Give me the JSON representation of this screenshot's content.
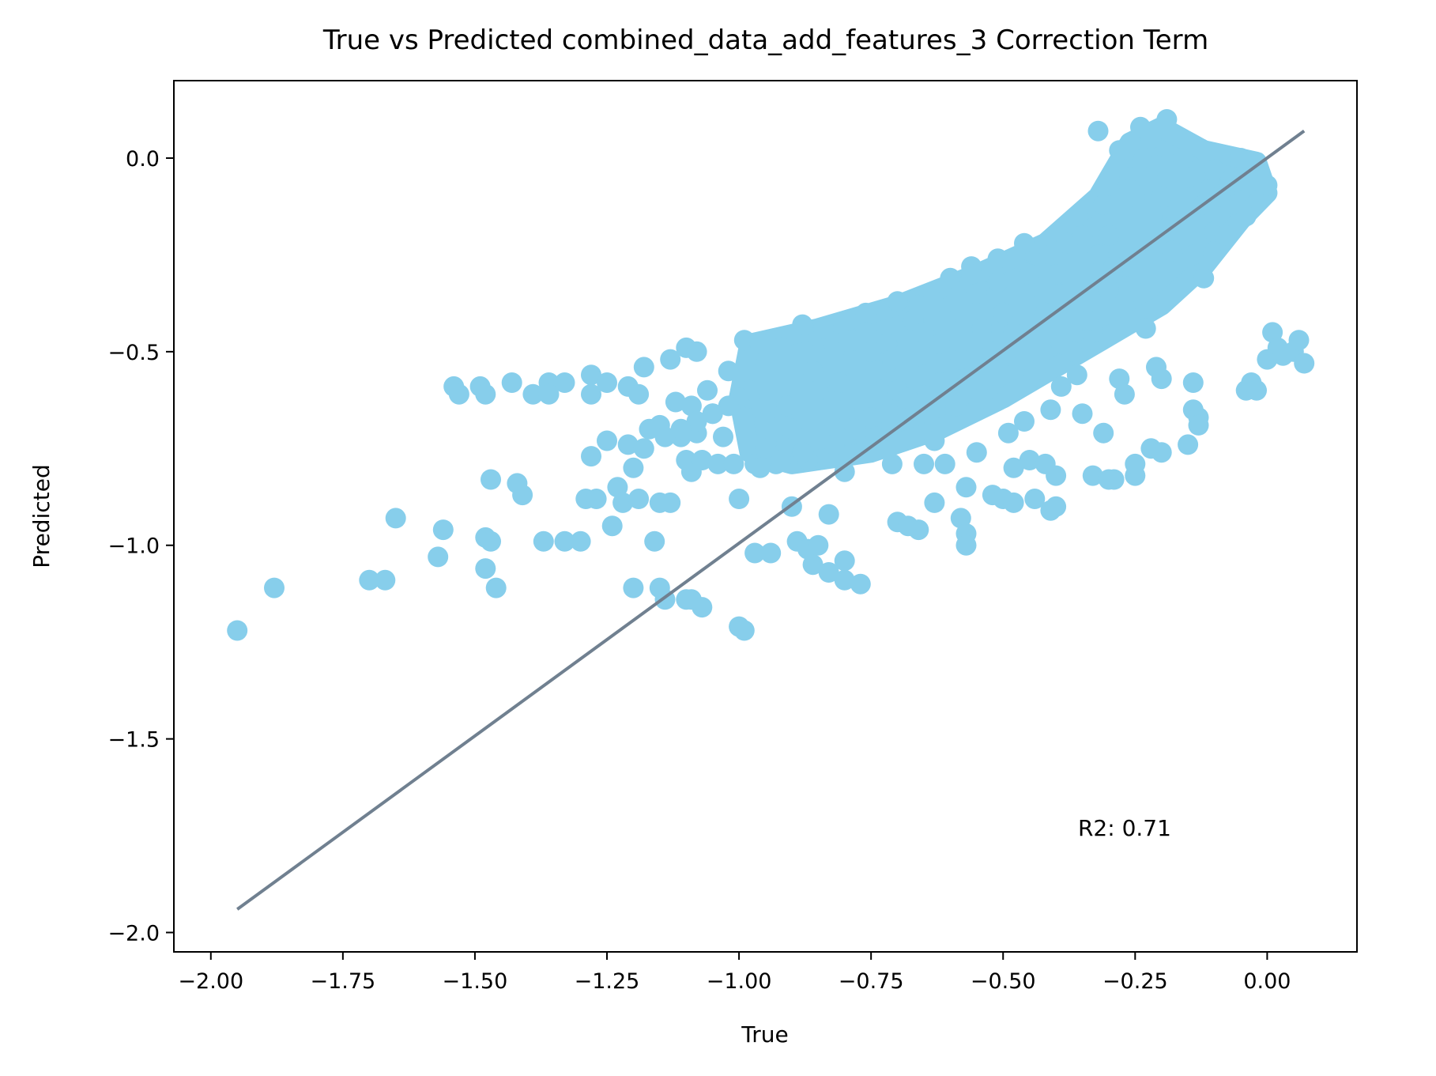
{
  "chart_data": {
    "type": "scatter",
    "title": "True vs Predicted combined_data_add_features_3 Correction Term",
    "xlabel": "True",
    "ylabel": "Predicted",
    "xlim": [
      -2.07,
      0.17
    ],
    "ylim": [
      -2.05,
      0.2
    ],
    "x_ticks": [
      -2.0,
      -1.75,
      -1.5,
      -1.25,
      -1.0,
      -0.75,
      -0.5,
      -0.25,
      0.0
    ],
    "x_tick_labels": [
      "−2.00",
      "−1.75",
      "−1.50",
      "−1.25",
      "−1.00",
      "−0.75",
      "−0.50",
      "−0.25",
      "0.00"
    ],
    "y_ticks": [
      0.0,
      -0.5,
      -1.0,
      -1.5,
      -2.0
    ],
    "y_tick_labels": [
      "0.0",
      "−0.5",
      "−1.0",
      "−1.5",
      "−2.0"
    ],
    "grid": false,
    "colors": {
      "points": "#87ceeb",
      "line": "#708090"
    },
    "annotation": "R2: 0.71",
    "reference_line": {
      "x": [
        -1.95,
        0.07
      ],
      "y": [
        -1.94,
        0.07
      ]
    },
    "points": [
      [
        -1.95,
        -1.22
      ],
      [
        -1.88,
        -1.11
      ],
      [
        -1.7,
        -1.09
      ],
      [
        -1.67,
        -1.09
      ],
      [
        -1.65,
        -0.93
      ],
      [
        -1.57,
        -1.03
      ],
      [
        -1.56,
        -0.96
      ],
      [
        -1.54,
        -0.59
      ],
      [
        -1.53,
        -0.61
      ],
      [
        -1.49,
        -0.59
      ],
      [
        -1.48,
        -0.61
      ],
      [
        -1.47,
        -0.83
      ],
      [
        -1.48,
        -0.98
      ],
      [
        -1.47,
        -0.99
      ],
      [
        -1.48,
        -1.06
      ],
      [
        -1.46,
        -1.11
      ],
      [
        -1.43,
        -0.58
      ],
      [
        -1.42,
        -0.84
      ],
      [
        -1.41,
        -0.87
      ],
      [
        -1.39,
        -0.61
      ],
      [
        -1.37,
        -0.99
      ],
      [
        -1.36,
        -0.58
      ],
      [
        -1.36,
        -0.61
      ],
      [
        -1.33,
        -0.58
      ],
      [
        -1.33,
        -0.99
      ],
      [
        -1.3,
        -0.99
      ],
      [
        -1.29,
        -0.88
      ],
      [
        -1.28,
        -0.56
      ],
      [
        -1.28,
        -0.61
      ],
      [
        -1.28,
        -0.77
      ],
      [
        -1.27,
        -0.88
      ],
      [
        -1.25,
        -0.58
      ],
      [
        -1.25,
        -0.73
      ],
      [
        -1.24,
        -0.95
      ],
      [
        -1.23,
        -0.85
      ],
      [
        -1.22,
        -0.89
      ],
      [
        -1.21,
        -0.74
      ],
      [
        -1.21,
        -0.59
      ],
      [
        -1.2,
        -1.11
      ],
      [
        -1.2,
        -0.8
      ],
      [
        -1.19,
        -0.88
      ],
      [
        -1.19,
        -0.61
      ],
      [
        -1.18,
        -0.54
      ],
      [
        -1.18,
        -0.75
      ],
      [
        -1.17,
        -0.7
      ],
      [
        -1.16,
        -0.99
      ],
      [
        -1.15,
        -1.11
      ],
      [
        -1.15,
        -0.89
      ],
      [
        -1.15,
        -0.69
      ],
      [
        -1.14,
        -1.14
      ],
      [
        -1.13,
        -0.89
      ],
      [
        -1.13,
        -0.52
      ],
      [
        -1.12,
        -0.63
      ],
      [
        -1.11,
        -0.72
      ],
      [
        -1.1,
        -1.14
      ],
      [
        -1.1,
        -0.78
      ],
      [
        -1.1,
        -0.49
      ],
      [
        -1.09,
        -1.14
      ],
      [
        -1.09,
        -0.81
      ],
      [
        -1.09,
        -0.64
      ],
      [
        -1.08,
        -0.5
      ],
      [
        -1.08,
        -0.71
      ],
      [
        -1.07,
        -1.16
      ],
      [
        -1.07,
        -0.78
      ],
      [
        -1.06,
        -0.6
      ],
      [
        -1.05,
        -0.66
      ],
      [
        -1.04,
        -0.79
      ],
      [
        -1.03,
        -0.72
      ],
      [
        -1.02,
        -0.55
      ],
      [
        -1.01,
        -0.79
      ],
      [
        -1.0,
        -0.88
      ],
      [
        -1.0,
        -1.21
      ],
      [
        -0.99,
        -1.22
      ],
      [
        -0.99,
        -0.47
      ],
      [
        -0.98,
        -0.62
      ],
      [
        -0.97,
        -0.79
      ],
      [
        -0.97,
        -1.02
      ],
      [
        -0.96,
        -0.48
      ],
      [
        -0.95,
        -0.68
      ],
      [
        -0.94,
        -1.02
      ],
      [
        -0.93,
        -0.79
      ],
      [
        -0.92,
        -0.49
      ],
      [
        -0.91,
        -0.74
      ],
      [
        -0.9,
        -0.9
      ],
      [
        -0.89,
        -0.99
      ],
      [
        -0.88,
        -0.43
      ],
      [
        -0.87,
        -0.78
      ],
      [
        -0.87,
        -1.01
      ],
      [
        -0.86,
        -1.05
      ],
      [
        -0.85,
        -0.46
      ],
      [
        -0.85,
        -1.0
      ],
      [
        -0.84,
        -0.44
      ],
      [
        -0.83,
        -0.92
      ],
      [
        -0.83,
        -1.07
      ],
      [
        -0.82,
        -0.7
      ],
      [
        -0.82,
        -0.5
      ],
      [
        -0.8,
        -1.09
      ],
      [
        -0.8,
        -1.04
      ],
      [
        -0.8,
        -0.81
      ],
      [
        -0.78,
        -0.47
      ],
      [
        -0.77,
        -1.1
      ],
      [
        -0.76,
        -0.4
      ],
      [
        -0.75,
        -0.67
      ],
      [
        -0.74,
        -0.55
      ],
      [
        -0.72,
        -0.48
      ],
      [
        -0.71,
        -0.79
      ],
      [
        -0.7,
        -0.37
      ],
      [
        -0.7,
        -0.94
      ],
      [
        -0.69,
        -0.62
      ],
      [
        -0.68,
        -0.95
      ],
      [
        -0.67,
        -0.42
      ],
      [
        -0.66,
        -0.96
      ],
      [
        -0.65,
        -0.79
      ],
      [
        -0.65,
        -0.56
      ],
      [
        -0.64,
        -0.35
      ],
      [
        -0.63,
        -0.89
      ],
      [
        -0.63,
        -0.73
      ],
      [
        -0.62,
        -0.48
      ],
      [
        -0.61,
        -0.79
      ],
      [
        -0.6,
        -0.31
      ],
      [
        -0.59,
        -0.64
      ],
      [
        -0.58,
        -0.93
      ],
      [
        -0.57,
        -0.85
      ],
      [
        -0.57,
        -0.97
      ],
      [
        -0.57,
        -1.0
      ],
      [
        -0.56,
        -0.28
      ],
      [
        -0.55,
        -0.76
      ],
      [
        -0.54,
        -0.44
      ],
      [
        -0.53,
        -0.61
      ],
      [
        -0.52,
        -0.87
      ],
      [
        -0.51,
        -0.26
      ],
      [
        -0.5,
        -0.88
      ],
      [
        -0.49,
        -0.71
      ],
      [
        -0.48,
        -0.8
      ],
      [
        -0.48,
        -0.89
      ],
      [
        -0.47,
        -0.54
      ],
      [
        -0.46,
        -0.68
      ],
      [
        -0.45,
        -0.24
      ],
      [
        -0.45,
        -0.78
      ],
      [
        -0.44,
        -0.88
      ],
      [
        -0.43,
        -0.38
      ],
      [
        -0.42,
        -0.79
      ],
      [
        -0.41,
        -0.65
      ],
      [
        -0.41,
        -0.91
      ],
      [
        -0.4,
        -0.82
      ],
      [
        -0.4,
        -0.9
      ],
      [
        -0.39,
        -0.59
      ],
      [
        -0.38,
        -0.22
      ],
      [
        -0.37,
        -0.5
      ],
      [
        -0.36,
        -0.56
      ],
      [
        -0.35,
        -0.66
      ],
      [
        -0.34,
        -0.13
      ],
      [
        -0.33,
        -0.82
      ],
      [
        -0.33,
        -0.45
      ],
      [
        -0.32,
        0.07
      ],
      [
        -0.31,
        -0.71
      ],
      [
        -0.3,
        -0.83
      ],
      [
        -0.3,
        -0.34
      ],
      [
        -0.29,
        -0.83
      ],
      [
        -0.28,
        -0.57
      ],
      [
        -0.27,
        -0.61
      ],
      [
        -0.27,
        -0.28
      ],
      [
        -0.25,
        -0.82
      ],
      [
        -0.25,
        -0.79
      ],
      [
        -0.24,
        0.08
      ],
      [
        -0.23,
        -0.44
      ],
      [
        -0.22,
        -0.75
      ],
      [
        -0.21,
        -0.54
      ],
      [
        -0.2,
        -0.57
      ],
      [
        -0.2,
        -0.76
      ],
      [
        -0.19,
        0.1
      ],
      [
        -0.18,
        -0.24
      ],
      [
        -0.15,
        -0.74
      ],
      [
        -0.14,
        -0.58
      ],
      [
        -0.14,
        -0.65
      ],
      [
        -0.13,
        -0.67
      ],
      [
        -0.13,
        -0.69
      ],
      [
        -0.12,
        -0.31
      ],
      [
        -0.1,
        -0.19
      ],
      [
        -0.08,
        -0.08
      ],
      [
        -0.06,
        -0.12
      ],
      [
        -0.04,
        -0.6
      ],
      [
        -0.03,
        -0.58
      ],
      [
        -0.02,
        -0.6
      ],
      [
        -0.01,
        -0.06
      ],
      [
        0.0,
        -0.07
      ],
      [
        0.0,
        -0.52
      ],
      [
        0.01,
        -0.45
      ],
      [
        0.02,
        -0.49
      ],
      [
        0.03,
        -0.51
      ],
      [
        0.05,
        -0.5
      ],
      [
        0.06,
        -0.47
      ],
      [
        0.07,
        -0.53
      ],
      [
        -0.7,
        -0.6
      ],
      [
        -0.6,
        -0.55
      ],
      [
        -0.5,
        -0.4
      ],
      [
        -0.4,
        -0.3
      ],
      [
        -0.3,
        -0.2
      ],
      [
        -0.2,
        -0.1
      ],
      [
        -0.1,
        -0.03
      ],
      [
        -0.8,
        -0.65
      ],
      [
        -0.9,
        -0.7
      ],
      [
        -0.95,
        -0.75
      ],
      [
        -0.85,
        -0.6
      ],
      [
        -0.75,
        -0.5
      ],
      [
        -0.65,
        -0.45
      ],
      [
        -0.55,
        -0.35
      ],
      [
        -0.45,
        -0.3
      ],
      [
        -0.35,
        -0.2
      ],
      [
        -0.25,
        -0.1
      ],
      [
        -0.15,
        -0.05
      ],
      [
        -0.05,
        0.0
      ],
      [
        -0.02,
        -0.02
      ],
      [
        -0.28,
        0.02
      ],
      [
        -0.22,
        0.05
      ],
      [
        -0.26,
        -0.05
      ],
      [
        -0.18,
        -0.15
      ],
      [
        -0.12,
        -0.12
      ],
      [
        -0.08,
        -0.2
      ],
      [
        -0.32,
        -0.25
      ],
      [
        -0.38,
        -0.35
      ],
      [
        -0.42,
        -0.4
      ],
      [
        -0.48,
        -0.45
      ],
      [
        -0.52,
        -0.5
      ],
      [
        -0.58,
        -0.52
      ],
      [
        -0.62,
        -0.58
      ],
      [
        -0.68,
        -0.62
      ],
      [
        -0.72,
        -0.66
      ],
      [
        -0.78,
        -0.7
      ],
      [
        -0.82,
        -0.74
      ],
      [
        -0.88,
        -0.76
      ],
      [
        -0.92,
        -0.78
      ],
      [
        -0.96,
        -0.8
      ],
      [
        -0.98,
        -0.6
      ],
      [
        -1.0,
        -0.62
      ],
      [
        -1.02,
        -0.64
      ],
      [
        -1.05,
        -0.66
      ],
      [
        -1.08,
        -0.68
      ],
      [
        -1.11,
        -0.7
      ],
      [
        -1.14,
        -0.72
      ],
      [
        -0.86,
        -0.55
      ],
      [
        -0.76,
        -0.45
      ],
      [
        -0.66,
        -0.38
      ],
      [
        -0.56,
        -0.3
      ],
      [
        -0.46,
        -0.22
      ],
      [
        -0.36,
        -0.15
      ],
      [
        -0.26,
        -0.08
      ],
      [
        -0.16,
        0.0
      ],
      [
        -0.06,
        -0.06
      ],
      [
        -0.31,
        -0.12
      ],
      [
        -0.21,
        -0.02
      ],
      [
        -0.11,
        -0.08
      ],
      [
        -0.41,
        -0.25
      ],
      [
        -0.51,
        -0.32
      ],
      [
        -0.61,
        -0.42
      ],
      [
        -0.71,
        -0.52
      ],
      [
        -0.81,
        -0.58
      ],
      [
        -0.91,
        -0.64
      ],
      [
        -0.44,
        -0.55
      ],
      [
        -0.54,
        -0.62
      ],
      [
        -0.64,
        -0.66
      ],
      [
        -0.74,
        -0.72
      ],
      [
        -0.34,
        -0.42
      ],
      [
        -0.24,
        -0.35
      ],
      [
        -0.14,
        -0.25
      ],
      [
        -0.04,
        -0.15
      ],
      [
        -0.09,
        -0.1
      ],
      [
        -0.19,
        -0.18
      ],
      [
        -0.29,
        -0.28
      ],
      [
        -0.39,
        -0.48
      ]
    ]
  }
}
